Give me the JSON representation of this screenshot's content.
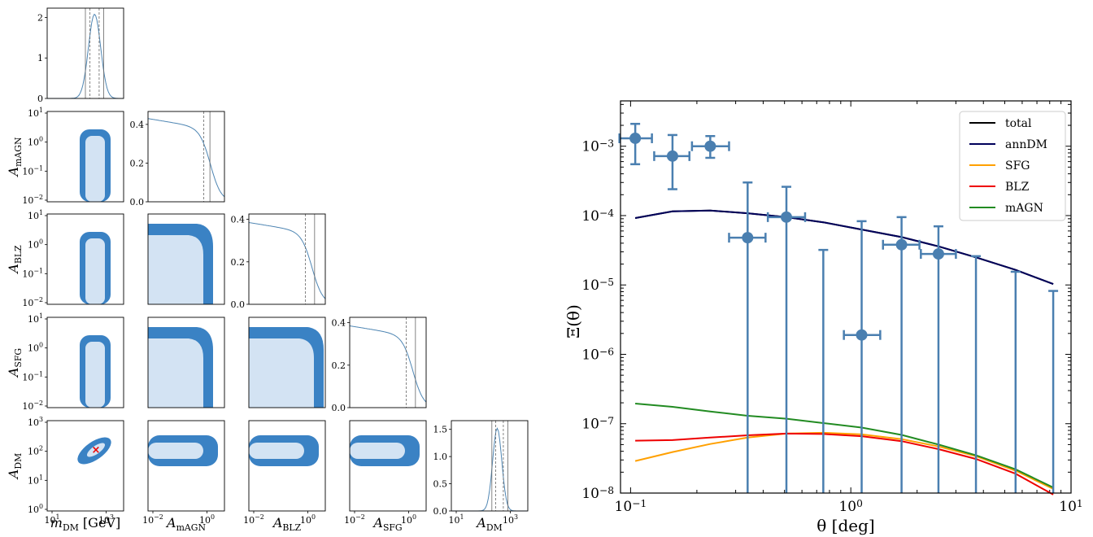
{
  "colors": {
    "outer": "#3a82c4",
    "inner": "#d3e3f3",
    "marginal": "#4f86b3",
    "point": "#4a7fb0",
    "total": "#000000",
    "annDM": "#00005a",
    "SFG": "#ffa000",
    "BLZ": "#ee0000",
    "mAGN": "#228b22"
  },
  "corner": {
    "params": [
      {
        "id": "mDM",
        "sym": "m",
        "sub": "DM",
        "unit": "[GeV]"
      },
      {
        "id": "AmAGN",
        "sym": "A",
        "sub": "mAGN",
        "unit": ""
      },
      {
        "id": "ABLZ",
        "sym": "A",
        "sub": "BLZ",
        "unit": ""
      },
      {
        "id": "ASFG",
        "sym": "A",
        "sub": "SFG",
        "unit": ""
      },
      {
        "id": "ADM",
        "sym": "A",
        "sub": "DM",
        "unit": ""
      }
    ],
    "diag_ticks": [
      {
        "labels": [
          "0",
          "1",
          "2"
        ],
        "values": [
          0,
          1,
          2
        ],
        "ymax": 2.15
      },
      {
        "labels": [
          "0.0",
          "0.2",
          "0.4"
        ],
        "values": [
          0,
          0.2,
          0.4
        ],
        "ymax": 0.45
      },
      {
        "labels": [
          "0.0",
          "0.2",
          "0.4"
        ],
        "values": [
          0,
          0.2,
          0.4
        ],
        "ymax": 0.41
      },
      {
        "labels": [
          "0.0",
          "0.2",
          "0.4"
        ],
        "values": [
          0,
          0.2,
          0.4
        ],
        "ymax": 0.41
      },
      {
        "labels": [
          "0.0",
          "0.5",
          "1.0",
          "1.5"
        ],
        "values": [
          0,
          0.5,
          1.0,
          1.5
        ],
        "ymax": 1.6
      }
    ],
    "row_ticks": [
      [
        "10^-2",
        "10^-1",
        "10^0",
        "10^1"
      ],
      [
        "10^-2",
        "10^-1",
        "10^0",
        "10^1"
      ],
      [
        "10^-2",
        "10^-1",
        "10^0",
        "10^1"
      ],
      [
        "10^0",
        "10^1",
        "10^2",
        "10^3"
      ]
    ],
    "col_ticks": [
      [
        "10^1",
        "10^3"
      ],
      [
        "10^-2",
        "10^0"
      ],
      [
        "10^-2",
        "10^0"
      ],
      [
        "10^-2",
        "10^0"
      ],
      [
        "10^1",
        "10^3"
      ]
    ],
    "best_fit_marker": "×"
  },
  "chart_data": {
    "type": "scatter",
    "xlabel": "θ [deg]",
    "ylabel": "Ξ(θ)",
    "xscale": "log",
    "yscale": "log",
    "xlim": [
      0.09,
      10
    ],
    "ylim": [
      1e-08,
      0.0045
    ],
    "x_ticks": [
      "10^-1",
      "10^0",
      "10^1"
    ],
    "y_ticks": [
      "10^-8",
      "10^-7",
      "10^-6",
      "10^-5",
      "10^-4",
      "10^-3"
    ],
    "legend_position": "top-right",
    "points": [
      {
        "x": 0.105,
        "y": 0.0013,
        "ylo": 0.00055,
        "yhi": 0.0021,
        "xlo": 0.089,
        "xhi": 0.125
      },
      {
        "x": 0.155,
        "y": 0.00072,
        "ylo": 0.00024,
        "yhi": 0.00145,
        "xlo": 0.128,
        "xhi": 0.185
      },
      {
        "x": 0.23,
        "y": 0.001,
        "ylo": 0.00068,
        "yhi": 0.0014,
        "xlo": 0.19,
        "xhi": 0.28
      },
      {
        "x": 0.34,
        "y": 4.8e-05,
        "ylo": 1e-08,
        "yhi": 0.0003,
        "xlo": 0.28,
        "xhi": 0.41
      },
      {
        "x": 0.51,
        "y": 9.5e-05,
        "ylo": 1e-08,
        "yhi": 0.00026,
        "xlo": 0.42,
        "xhi": 0.62
      },
      {
        "x": 0.75,
        "y": null,
        "ylo": 1e-08,
        "yhi": 3.2e-05,
        "xlo": null,
        "xhi": null
      },
      {
        "x": 1.12,
        "y": 1.9e-06,
        "ylo": 1e-08,
        "yhi": 8.3e-05,
        "xlo": 0.93,
        "xhi": 1.36
      },
      {
        "x": 1.7,
        "y": 3.8e-05,
        "ylo": 1e-08,
        "yhi": 9.5e-05,
        "xlo": 1.4,
        "xhi": 2.05
      },
      {
        "x": 2.5,
        "y": 2.8e-05,
        "ylo": 1e-08,
        "yhi": 7e-05,
        "xlo": 2.08,
        "xhi": 3.0
      },
      {
        "x": 3.7,
        "y": null,
        "ylo": 1e-08,
        "yhi": 2.6e-05,
        "xlo": null,
        "xhi": null
      },
      {
        "x": 5.6,
        "y": null,
        "ylo": 1e-08,
        "yhi": 1.55e-05,
        "xlo": null,
        "xhi": null
      },
      {
        "x": 8.3,
        "y": null,
        "ylo": 1e-08,
        "yhi": 8.2e-06,
        "xlo": null,
        "xhi": null
      }
    ],
    "series": [
      {
        "name": "total",
        "x": [
          0.105,
          0.155,
          0.23,
          0.34,
          0.51,
          0.75,
          1.12,
          1.7,
          2.5,
          3.7,
          5.6,
          8.3
        ],
        "values": [
          9.2e-05,
          0.000115,
          0.000118,
          0.000108,
          9.5e-05,
          8e-05,
          6.3e-05,
          4.9e-05,
          3.6e-05,
          2.5e-05,
          1.65e-05,
          1.03e-05
        ]
      },
      {
        "name": "annDM",
        "x": [
          0.105,
          0.155,
          0.23,
          0.34,
          0.51,
          0.75,
          1.12,
          1.7,
          2.5,
          3.7,
          5.6,
          8.3
        ],
        "values": [
          9.2e-05,
          0.000115,
          0.000118,
          0.000108,
          9.5e-05,
          8e-05,
          6.3e-05,
          4.9e-05,
          3.6e-05,
          2.5e-05,
          1.65e-05,
          1.03e-05
        ]
      },
      {
        "name": "SFG",
        "x": [
          0.105,
          0.155,
          0.23,
          0.34,
          0.51,
          0.75,
          1.12,
          1.7,
          2.5,
          3.7,
          5.6,
          8.3
        ],
        "values": [
          2.9e-08,
          3.9e-08,
          5.1e-08,
          6.3e-08,
          7.2e-08,
          7.4e-08,
          7e-08,
          6e-08,
          4.7e-08,
          3.4e-08,
          2.1e-08,
          1.15e-08
        ]
      },
      {
        "name": "BLZ",
        "x": [
          0.105,
          0.155,
          0.23,
          0.34,
          0.51,
          0.75,
          1.12,
          1.7,
          2.5,
          3.7,
          5.6,
          8.3
        ],
        "values": [
          5.7e-08,
          5.8e-08,
          6.3e-08,
          6.8e-08,
          7.2e-08,
          7.1e-08,
          6.6e-08,
          5.6e-08,
          4.3e-08,
          3.1e-08,
          1.9e-08,
          9.5e-09
        ]
      },
      {
        "name": "mAGN",
        "x": [
          0.105,
          0.155,
          0.23,
          0.34,
          0.51,
          0.75,
          1.12,
          1.7,
          2.5,
          3.7,
          5.6,
          8.3
        ],
        "values": [
          1.95e-07,
          1.75e-07,
          1.5e-07,
          1.3e-07,
          1.18e-07,
          1.02e-07,
          8.8e-08,
          6.9e-08,
          5e-08,
          3.5e-08,
          2.2e-08,
          1.2e-08
        ]
      }
    ]
  }
}
